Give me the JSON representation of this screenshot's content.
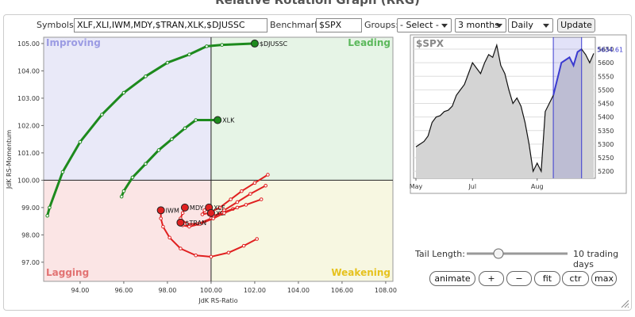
{
  "page_title": "Relative Rotation Graph (RRG)",
  "controls": {
    "symbols_label": "Symbols:",
    "symbols": "XLF,XLI,IWM,MDY,$TRAN,XLK,$DJUSSC",
    "benchmark_label": "Benchmark:",
    "benchmark": "$SPX",
    "groups_label": "Groups:",
    "groups": "- Select -",
    "period": "3 months",
    "frequency": "Daily",
    "update": "Update",
    "tail_label": "Tail Length:",
    "tail_value": "10 trading days",
    "buttons": [
      "animate",
      "+",
      "−",
      "fit",
      "ctr",
      "max"
    ]
  },
  "chart_data": [
    {
      "type": "rrg",
      "x_label": "JdK RS-Ratio",
      "y_label": "JdK RS-Momentum",
      "xlim": [
        92.33,
        108.33
      ],
      "ylim": [
        96.3,
        105.23
      ],
      "xticks": [
        {
          "value": 94,
          "label": "94.00"
        },
        {
          "value": 96,
          "label": "96.00"
        },
        {
          "value": 98,
          "label": "98.00"
        },
        {
          "value": 100,
          "label": "100.00"
        },
        {
          "value": 102,
          "label": "102.00"
        },
        {
          "value": 104,
          "label": "104.00"
        },
        {
          "value": 106,
          "label": "106.00"
        },
        {
          "value": 108,
          "label": "108.00"
        }
      ],
      "yticks": [
        {
          "value": 97,
          "label": "97.00"
        },
        {
          "value": 98,
          "label": "98.00"
        },
        {
          "value": 99,
          "label": "99.00"
        },
        {
          "value": 100,
          "label": "100.00"
        },
        {
          "value": 101,
          "label": "101.00"
        },
        {
          "value": 102,
          "label": "102.00"
        },
        {
          "value": 103,
          "label": "103.00"
        },
        {
          "value": 104,
          "label": "104.00"
        },
        {
          "value": 105,
          "label": "105.00"
        }
      ],
      "center": {
        "x": 100,
        "y": 100
      },
      "quadrants": [
        {
          "name": "Improving",
          "color": "#e9e9f8",
          "label_color": "#9b9be3"
        },
        {
          "name": "Leading",
          "color": "#e6f4e6",
          "label_color": "#5cb85c"
        },
        {
          "name": "Lagging",
          "color": "#fbe5e5",
          "label_color": "#e27272"
        },
        {
          "name": "Weakening",
          "color": "#f7f7e1",
          "label_color": "#e6c21e"
        }
      ],
      "series": [
        {
          "name": "$DJUSSC",
          "color": "#1d8a1d",
          "x": [
            92.5,
            92.6,
            93.2,
            94.0,
            95.0,
            96.0,
            97.0,
            98.0,
            99.0,
            99.8,
            100.5,
            102.0
          ],
          "y": [
            98.7,
            99.0,
            100.3,
            101.4,
            102.4,
            103.2,
            103.8,
            104.3,
            104.6,
            104.9,
            104.95,
            105.0
          ]
        },
        {
          "name": "XLK",
          "color": "#1d8a1d",
          "x": [
            95.9,
            96.0,
            96.4,
            97.0,
            97.6,
            98.2,
            98.8,
            99.3,
            100.3
          ],
          "y": [
            99.4,
            99.6,
            100.1,
            100.6,
            101.1,
            101.5,
            101.9,
            102.2,
            102.2
          ]
        },
        {
          "name": "IWM",
          "color": "#e02020",
          "x": [
            102.1,
            101.5,
            100.8,
            100.0,
            99.3,
            98.6,
            98.1,
            97.8,
            97.7,
            97.7
          ],
          "y": [
            97.85,
            97.6,
            97.35,
            97.2,
            97.25,
            97.5,
            97.9,
            98.3,
            98.6,
            98.9
          ]
        },
        {
          "name": "MDY",
          "color": "#e02020",
          "x": [
            102.5,
            101.8,
            101.2,
            100.6,
            100.0,
            99.4,
            98.9,
            98.6,
            98.7,
            98.8
          ],
          "y": [
            99.8,
            99.5,
            99.2,
            98.9,
            98.6,
            98.4,
            98.4,
            98.6,
            98.8,
            99.0
          ]
        },
        {
          "name": "XLF",
          "color": "#e02020",
          "x": [
            102.6,
            102.0,
            101.4,
            100.9,
            100.4,
            99.9,
            99.6,
            99.7,
            99.9
          ],
          "y": [
            100.2,
            99.9,
            99.6,
            99.3,
            99.0,
            98.8,
            98.75,
            98.9,
            99.0
          ]
        },
        {
          "name": "XLI",
          "color": "#e02020",
          "x": [
            102.3,
            101.6,
            101.0,
            100.5,
            100.1,
            99.9,
            100.0
          ],
          "y": [
            99.3,
            99.1,
            98.95,
            98.8,
            98.7,
            98.75,
            98.8
          ]
        },
        {
          "name": "$TRAN",
          "color": "#e02020",
          "x": [
            101.2,
            100.6,
            100.1,
            99.5,
            99.0,
            98.7,
            98.6
          ],
          "y": [
            99.0,
            98.8,
            98.6,
            98.4,
            98.3,
            98.35,
            98.45
          ]
        }
      ]
    },
    {
      "type": "line",
      "title": "$SPX",
      "color": "#111111",
      "fill": "#d4d4d4",
      "highlight_color": "#3b3bd0",
      "highlight": [
        34,
        41
      ],
      "categories": [
        "May",
        null,
        null,
        null,
        null,
        null,
        null,
        null,
        null,
        null,
        null,
        null,
        null,
        null,
        "Jul",
        null,
        null,
        null,
        null,
        null,
        null,
        null,
        null,
        null,
        null,
        null,
        null,
        null,
        null,
        null,
        "Aug",
        null,
        null,
        null,
        null,
        null,
        null,
        null,
        null,
        null,
        null,
        null,
        null,
        null,
        null
      ],
      "values": [
        5290,
        5300,
        5310,
        5330,
        5380,
        5400,
        5405,
        5420,
        5425,
        5440,
        5480,
        5500,
        5520,
        5560,
        5600,
        5580,
        5560,
        5600,
        5630,
        5620,
        5665,
        5590,
        5560,
        5500,
        5450,
        5470,
        5440,
        5380,
        5300,
        5200,
        5230,
        5200,
        5420,
        5450,
        5480,
        5540,
        5600,
        5610,
        5620,
        5590,
        5640,
        5650,
        5630,
        5600,
        5634.61
      ],
      "ylim": [
        5174,
        5694
      ],
      "yticks": [
        5200,
        5250,
        5300,
        5350,
        5400,
        5450,
        5500,
        5550,
        5600,
        5650
      ]
    }
  ]
}
